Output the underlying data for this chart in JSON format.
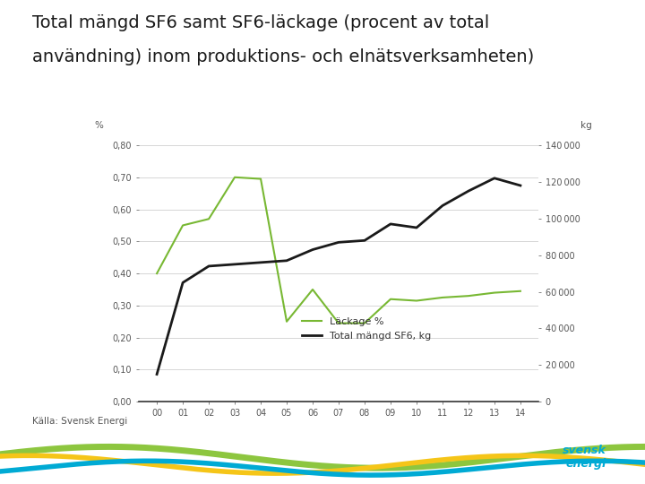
{
  "title_line1": "Total mängd SF6 samt SF6-läckage (procent av total",
  "title_line2": "användning) inom produktions- och elnätsverksamheten)",
  "source": "Källa: Svensk Energi",
  "years": [
    "00",
    "01",
    "02",
    "03",
    "04",
    "05",
    "06",
    "07",
    "08",
    "09",
    "10",
    "11",
    "12",
    "13",
    "14"
  ],
  "leakage_pct": [
    0.4,
    0.55,
    0.57,
    0.7,
    0.695,
    0.25,
    0.35,
    0.245,
    0.245,
    0.32,
    0.315,
    0.325,
    0.33,
    0.34,
    0.345
  ],
  "total_sf6_kg": [
    15000,
    65000,
    74000,
    75000,
    76000,
    77000,
    83000,
    87000,
    88000,
    97000,
    95000,
    107000,
    115000,
    122000,
    118000
  ],
  "left_unit": "%",
  "right_unit": "kg",
  "legend_leakage": "Läckage %",
  "legend_total": "Total mängd SF6, kg",
  "left_ylim": [
    0.0,
    0.8
  ],
  "right_ylim": [
    0,
    140000
  ],
  "left_yticks": [
    0.0,
    0.1,
    0.2,
    0.3,
    0.4,
    0.5,
    0.6,
    0.7,
    0.8
  ],
  "right_yticks": [
    0,
    20000,
    40000,
    60000,
    80000,
    100000,
    120000,
    140000
  ],
  "color_leakage": "#78b833",
  "color_total": "#1a1a1a",
  "bg_color": "#ffffff",
  "grid_color": "#d0d0d0",
  "title_fontsize": 14,
  "tick_fontsize": 7,
  "legend_fontsize": 8,
  "unit_fontsize": 7.5,
  "source_fontsize": 7.5,
  "wave_green": "#8dc63f",
  "wave_yellow": "#f5c518",
  "wave_blue": "#00aad4"
}
